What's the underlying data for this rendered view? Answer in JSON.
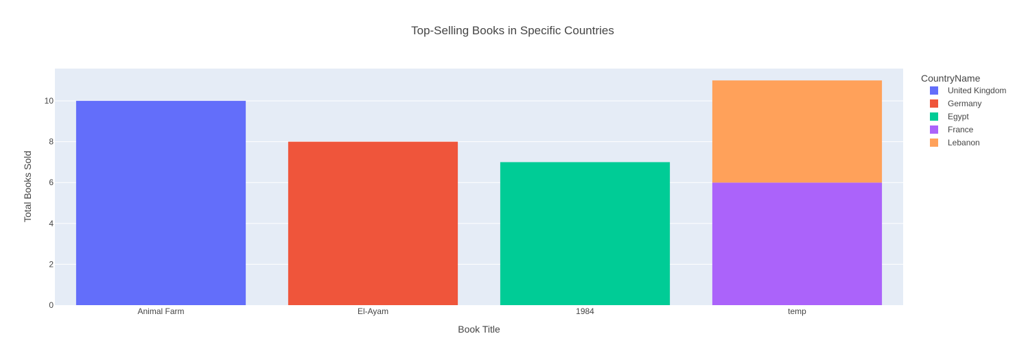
{
  "chart_data": {
    "type": "bar",
    "barmode": "stack",
    "title": "Top-Selling Books in Specific Countries",
    "xlabel": "Book Title",
    "ylabel": "Total Books Sold",
    "categories": [
      "Animal Farm",
      "El-Ayam",
      "1984",
      "temp"
    ],
    "ylim": [
      0,
      11.58
    ],
    "yticks": [
      0,
      2,
      4,
      6,
      8,
      10
    ],
    "grid": true,
    "legend_title": "CountryName",
    "legend_position": "right",
    "series": [
      {
        "name": "United Kingdom",
        "color": "#636efa",
        "values": [
          10,
          0,
          0,
          0
        ]
      },
      {
        "name": "Germany",
        "color": "#ef553b",
        "values": [
          0,
          8,
          0,
          0
        ]
      },
      {
        "name": "Egypt",
        "color": "#00cc96",
        "values": [
          0,
          0,
          7,
          0
        ]
      },
      {
        "name": "France",
        "color": "#ab63fa",
        "values": [
          0,
          0,
          0,
          6
        ]
      },
      {
        "name": "Lebanon",
        "color": "#ffa15a",
        "values": [
          0,
          0,
          0,
          5
        ]
      }
    ],
    "colors": {
      "plot_background": "#e5ecf6",
      "gridline": "#ffffff"
    }
  }
}
